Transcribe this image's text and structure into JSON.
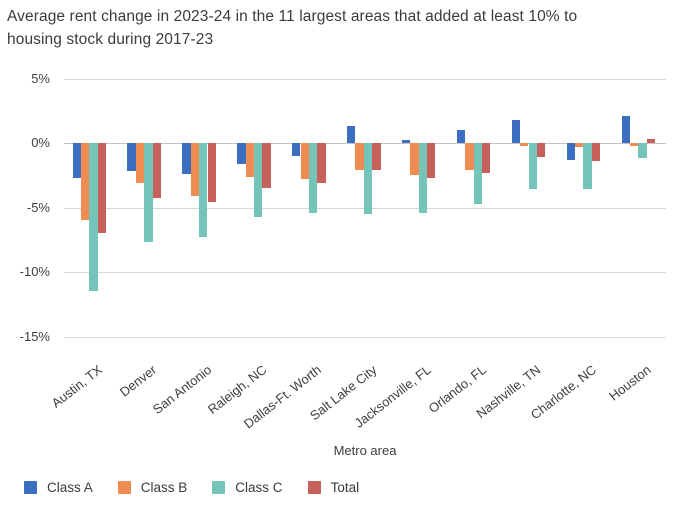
{
  "title_lines": [
    "Average rent change in 2023-24 in the 11 largest areas that added at least 10% to",
    "housing stock during 2017-23"
  ],
  "chart_data": {
    "type": "bar",
    "title": "Average rent change in 2023-24 in the 11 largest areas that added at least 10% to housing stock during 2017-23",
    "xlabel": "Metro area",
    "ylabel": "",
    "grid": true,
    "legend_position": "bottom-left",
    "ylim": [
      -17,
      6.5
    ],
    "y_ticks": [
      {
        "value": 5,
        "label": "5%"
      },
      {
        "value": 0,
        "label": "0%"
      },
      {
        "value": -5,
        "label": "-5%"
      },
      {
        "value": -10,
        "label": "-10%"
      },
      {
        "value": -15,
        "label": "-15%"
      }
    ],
    "categories": [
      "Austin, TX",
      "Denver",
      "San Antonio",
      "Raleigh, NC",
      "Dallas-Ft. Worth",
      "Salt Lake City",
      "Jacksonville, FL",
      "Orlando, FL",
      "Nashville, TN",
      "Charlotte, NC",
      "Houston"
    ],
    "series": [
      {
        "name": "Class A",
        "color": "#3b6ec1",
        "values": [
          -2.7,
          -2.2,
          -2.4,
          -1.6,
          -1.0,
          1.3,
          0.2,
          1.0,
          1.8,
          -1.3,
          2.1
        ]
      },
      {
        "name": "Class B",
        "color": "#f08c51",
        "values": [
          -6.0,
          -3.1,
          -4.1,
          -2.6,
          -2.8,
          -2.1,
          -2.5,
          -2.1,
          -0.2,
          -0.3,
          -0.2
        ]
      },
      {
        "name": "Class C",
        "color": "#74c4ba",
        "values": [
          -11.5,
          -7.7,
          -7.3,
          -5.7,
          -5.4,
          -5.5,
          -5.4,
          -4.7,
          -3.6,
          -3.6,
          -1.2
        ]
      },
      {
        "name": "Total",
        "color": "#c7605b",
        "values": [
          -7.0,
          -4.3,
          -4.6,
          -3.5,
          -3.1,
          -2.1,
          -2.7,
          -2.3,
          -1.1,
          -1.4,
          0.3
        ]
      }
    ]
  }
}
